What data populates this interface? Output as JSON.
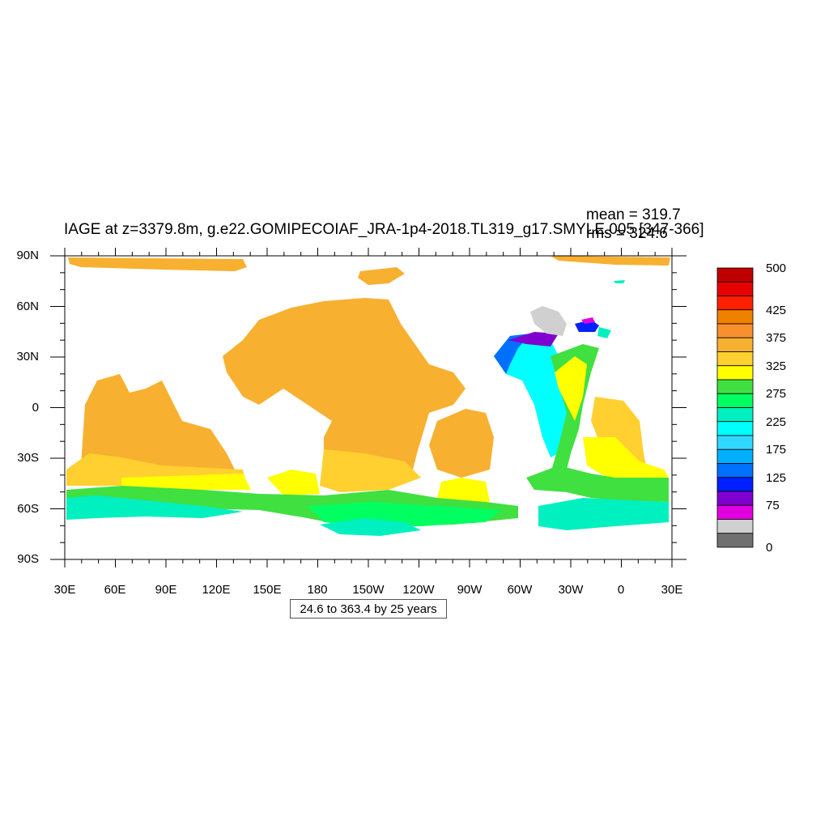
{
  "title": "IAGE at z=3379.8m, g.e22.GOMIPECOIAF_JRA-1p4-2018.TL319_g17.SMYLE.005 [347-366]",
  "stats": {
    "mean": "mean = 319.7",
    "rms": "rms = 324.6"
  },
  "lat_labels": [
    "90N",
    "60N",
    "30N",
    "0",
    "30S",
    "60S",
    "90S"
  ],
  "lon_labels": [
    "30E",
    "60E",
    "90E",
    "120E",
    "150E",
    "180",
    "150W",
    "120W",
    "90W",
    "60W",
    "30W",
    "0",
    "30E"
  ],
  "colorbar": {
    "labels": [
      "500",
      "425",
      "375",
      "325",
      "275",
      "225",
      "175",
      "125",
      "75",
      "0"
    ],
    "colors": [
      "#c00000",
      "#e80000",
      "#ff2000",
      "#f08000",
      "#f89030",
      "#f8b030",
      "#ffd030",
      "#ffff00",
      "#40e040",
      "#00ff60",
      "#00f0c0",
      "#00ffff",
      "#30d8ff",
      "#00b0ff",
      "#0070ff",
      "#0020ff",
      "#8000d0",
      "#e000e0",
      "#d0d0d0",
      "#707070"
    ]
  },
  "contour_info": "24.6 to 363.4 by 25 years",
  "map_colors": {
    "orange": "#f8b030",
    "yellow": "#ffff00",
    "gold": "#ffd030",
    "green": "#40e040",
    "lime": "#00ff60",
    "teal": "#00f0c0",
    "cyan": "#00ffff",
    "gray": "#d0d0d0"
  }
}
